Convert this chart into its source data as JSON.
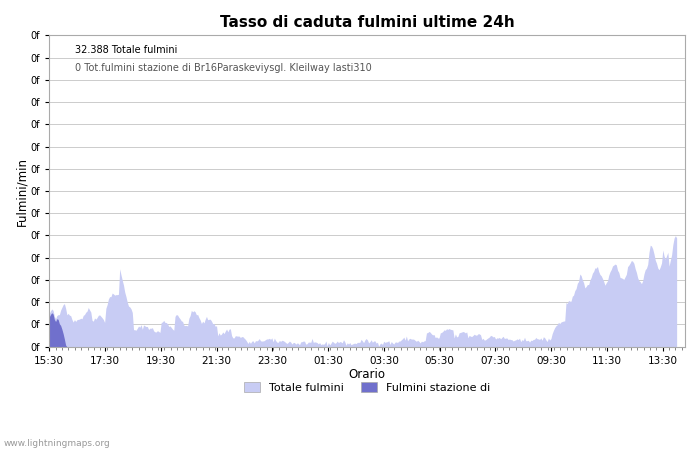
{
  "title": "Tasso di caduta fulmini ultime 24h",
  "xlabel": "Orario",
  "ylabel": "Fulmini/min",
  "annotation_line1": "32.388 Totale fulmini",
  "annotation_line2": "0 Tot.fulmini stazione di Br16Paraskeviysgl. Kleilway lasti310",
  "legend_label1": "Totale fulmini",
  "legend_label2": "Fulmini stazione di",
  "fill_color": "#c8ccf4",
  "fill_color2": "#7070cc",
  "background_color": "#ffffff",
  "watermark": "www.lightningmaps.org",
  "x_tick_labels": [
    "15:30",
    "17:30",
    "19:30",
    "21:30",
    "23:30",
    "01:30",
    "03:30",
    "05:30",
    "07:30",
    "09:30",
    "11:30",
    "13:30"
  ],
  "ylim": [
    0,
    210
  ],
  "n_yticks": 15
}
